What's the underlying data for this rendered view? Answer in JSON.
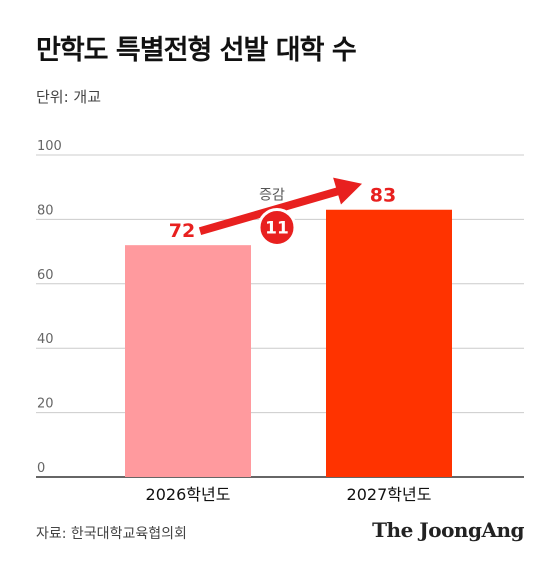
{
  "header": {
    "title": "만학도 특별전형 선발 대학 수",
    "unit": "단위: 개교"
  },
  "footer": {
    "source": "자료: 한국대학교육협의회",
    "brand": "The JoongAng"
  },
  "annotation": {
    "label": "증감",
    "value": "11"
  },
  "colors": {
    "bar_2026": "#ff9a9e",
    "bar_2027": "#ff3300",
    "label_red": "#e8201f",
    "arrow": "#e8201f",
    "grid": "#cccccc"
  },
  "chart_data": {
    "type": "bar",
    "categories": [
      "2026학년도",
      "2027학년도"
    ],
    "values": [
      72,
      83
    ],
    "data_labels": [
      "72",
      "83"
    ],
    "ylim": [
      0,
      100
    ],
    "yticks": [
      0,
      20,
      40,
      60,
      80,
      100
    ],
    "grid": true
  }
}
